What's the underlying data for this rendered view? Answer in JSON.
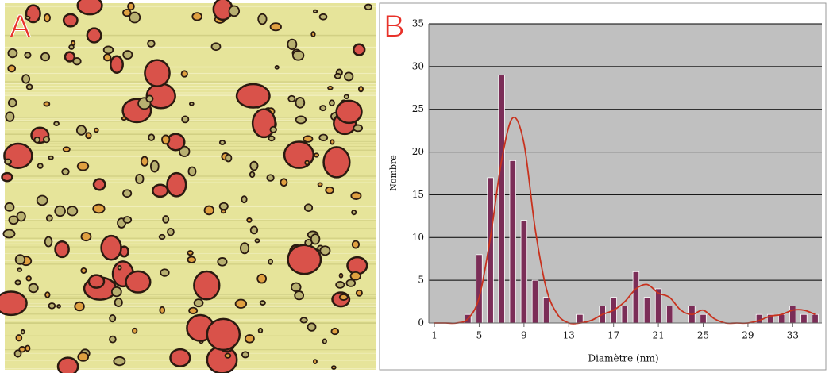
{
  "panel_labels": [
    "A",
    "B"
  ],
  "chart_data": {
    "type": "bar",
    "x_label": "Diamètre (nm)",
    "y_label": "Nombre",
    "x": [
      1,
      2,
      3,
      4,
      5,
      6,
      7,
      8,
      9,
      10,
      11,
      12,
      13,
      14,
      15,
      16,
      17,
      18,
      19,
      20,
      21,
      22,
      23,
      24,
      25,
      26,
      27,
      28,
      29,
      30,
      31,
      32,
      33,
      34,
      35
    ],
    "values": [
      0,
      0,
      0,
      1,
      8,
      17,
      29,
      19,
      12,
      5,
      3,
      0,
      0,
      1,
      0,
      2,
      3,
      2,
      6,
      3,
      4,
      2,
      0,
      2,
      1,
      0,
      0,
      0,
      0,
      1,
      1,
      1,
      2,
      1,
      1
    ],
    "color": "#7b2d57",
    "curve": {
      "type": "line",
      "color": "#c8321e",
      "values": [
        0,
        0,
        0,
        0.5,
        3,
        10,
        19,
        24,
        21,
        11,
        4,
        1,
        0,
        0,
        0.3,
        1,
        1.5,
        2.5,
        4,
        4.5,
        3.5,
        3,
        1.5,
        1,
        1.5,
        0.5,
        0,
        0,
        0,
        0.3,
        0.8,
        1,
        1.5,
        1.5,
        1
      ]
    },
    "xlim": [
      0.5,
      35.6
    ],
    "xticks": [
      1,
      5,
      9,
      13,
      17,
      21,
      25,
      29,
      33
    ],
    "ylim": [
      0,
      35
    ],
    "yticks": [
      0,
      5,
      10,
      15,
      20,
      25,
      30,
      35
    ],
    "grid": true
  }
}
